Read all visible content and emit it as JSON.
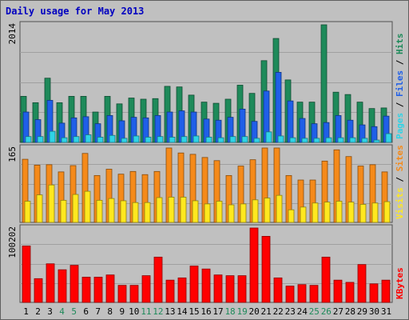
{
  "chart_data": {
    "type": "bar",
    "title": "Daily usage for May 2013",
    "days": [
      "1",
      "2",
      "3",
      "4",
      "5",
      "6",
      "7",
      "8",
      "9",
      "10",
      "11",
      "12",
      "13",
      "14",
      "15",
      "16",
      "17",
      "18",
      "19",
      "20",
      "21",
      "22",
      "23",
      "24",
      "25",
      "26",
      "27",
      "28",
      "29",
      "30",
      "31"
    ],
    "weekend_days": [
      "4",
      "5",
      "11",
      "12",
      "18",
      "19",
      "25",
      "26"
    ],
    "panels": [
      {
        "id": "hits_panel",
        "max_label": "2014",
        "ymax": 2014,
        "series": [
          {
            "name": "Hits",
            "color": "#1e8a5a",
            "values": [
              789,
              680,
              1100,
              680,
              789,
              789,
              520,
              789,
              660,
              760,
              740,
              750,
              960,
              950,
              810,
              690,
              670,
              740,
              980,
              840,
              1400,
              1780,
              1070,
              690,
              690,
              2014,
              860,
              820,
              690,
              580,
              590
            ]
          },
          {
            "name": "Files",
            "color": "#1f5fe8",
            "values": [
              520,
              390,
              720,
              330,
              420,
              440,
              320,
              460,
              370,
              430,
              420,
              460,
              520,
              540,
              520,
              400,
              380,
              430,
              570,
              360,
              880,
              1200,
              710,
              410,
              320,
              340,
              460,
              380,
              300,
              270,
              450
            ]
          },
          {
            "name": "Pages",
            "color": "#2fd3e6",
            "values": [
              100,
              100,
              190,
              80,
              100,
              130,
              90,
              120,
              70,
              110,
              90,
              100,
              90,
              100,
              110,
              90,
              80,
              100,
              100,
              70,
              180,
              110,
              80,
              70,
              70,
              80,
              80,
              80,
              70,
              40,
              150
            ]
          }
        ]
      },
      {
        "id": "visits_panel",
        "max_label": "165",
        "ymax": 165,
        "series": [
          {
            "name": "Sites",
            "color": "#f58a1a",
            "values": [
              140,
              127,
              128,
              112,
              126,
              153,
              104,
              118,
              107,
              113,
              106,
              113,
              165,
              154,
              151,
              144,
              137,
              104,
              125,
              139,
              165,
              165,
              104,
              94,
              94,
              136,
              161,
              146,
              125,
              128,
              112
            ]
          },
          {
            "name": "Visits",
            "color": "#ffe81f",
            "values": [
              47,
              61,
              83,
              49,
              62,
              69,
              49,
              53,
              48,
              44,
              44,
              55,
              56,
              56,
              48,
              41,
              47,
              39,
              41,
              50,
              54,
              60,
              28,
              34,
              43,
              45,
              47,
              45,
              40,
              43,
              46
            ]
          }
        ]
      },
      {
        "id": "kbytes_panel",
        "max_label": "100202",
        "ymax": 100202,
        "series": [
          {
            "name": "KBytes",
            "color": "#ff0000",
            "values": [
              76000,
              32000,
              52000,
              44000,
              50000,
              34000,
              34000,
              37000,
              23000,
              23000,
              36000,
              61000,
              30000,
              33000,
              49000,
              45000,
              37000,
              36000,
              36000,
              100202,
              89000,
              33000,
              22000,
              24000,
              23000,
              61000,
              30000,
              27000,
              51000,
              25000,
              30000
            ]
          }
        ]
      }
    ]
  }
}
